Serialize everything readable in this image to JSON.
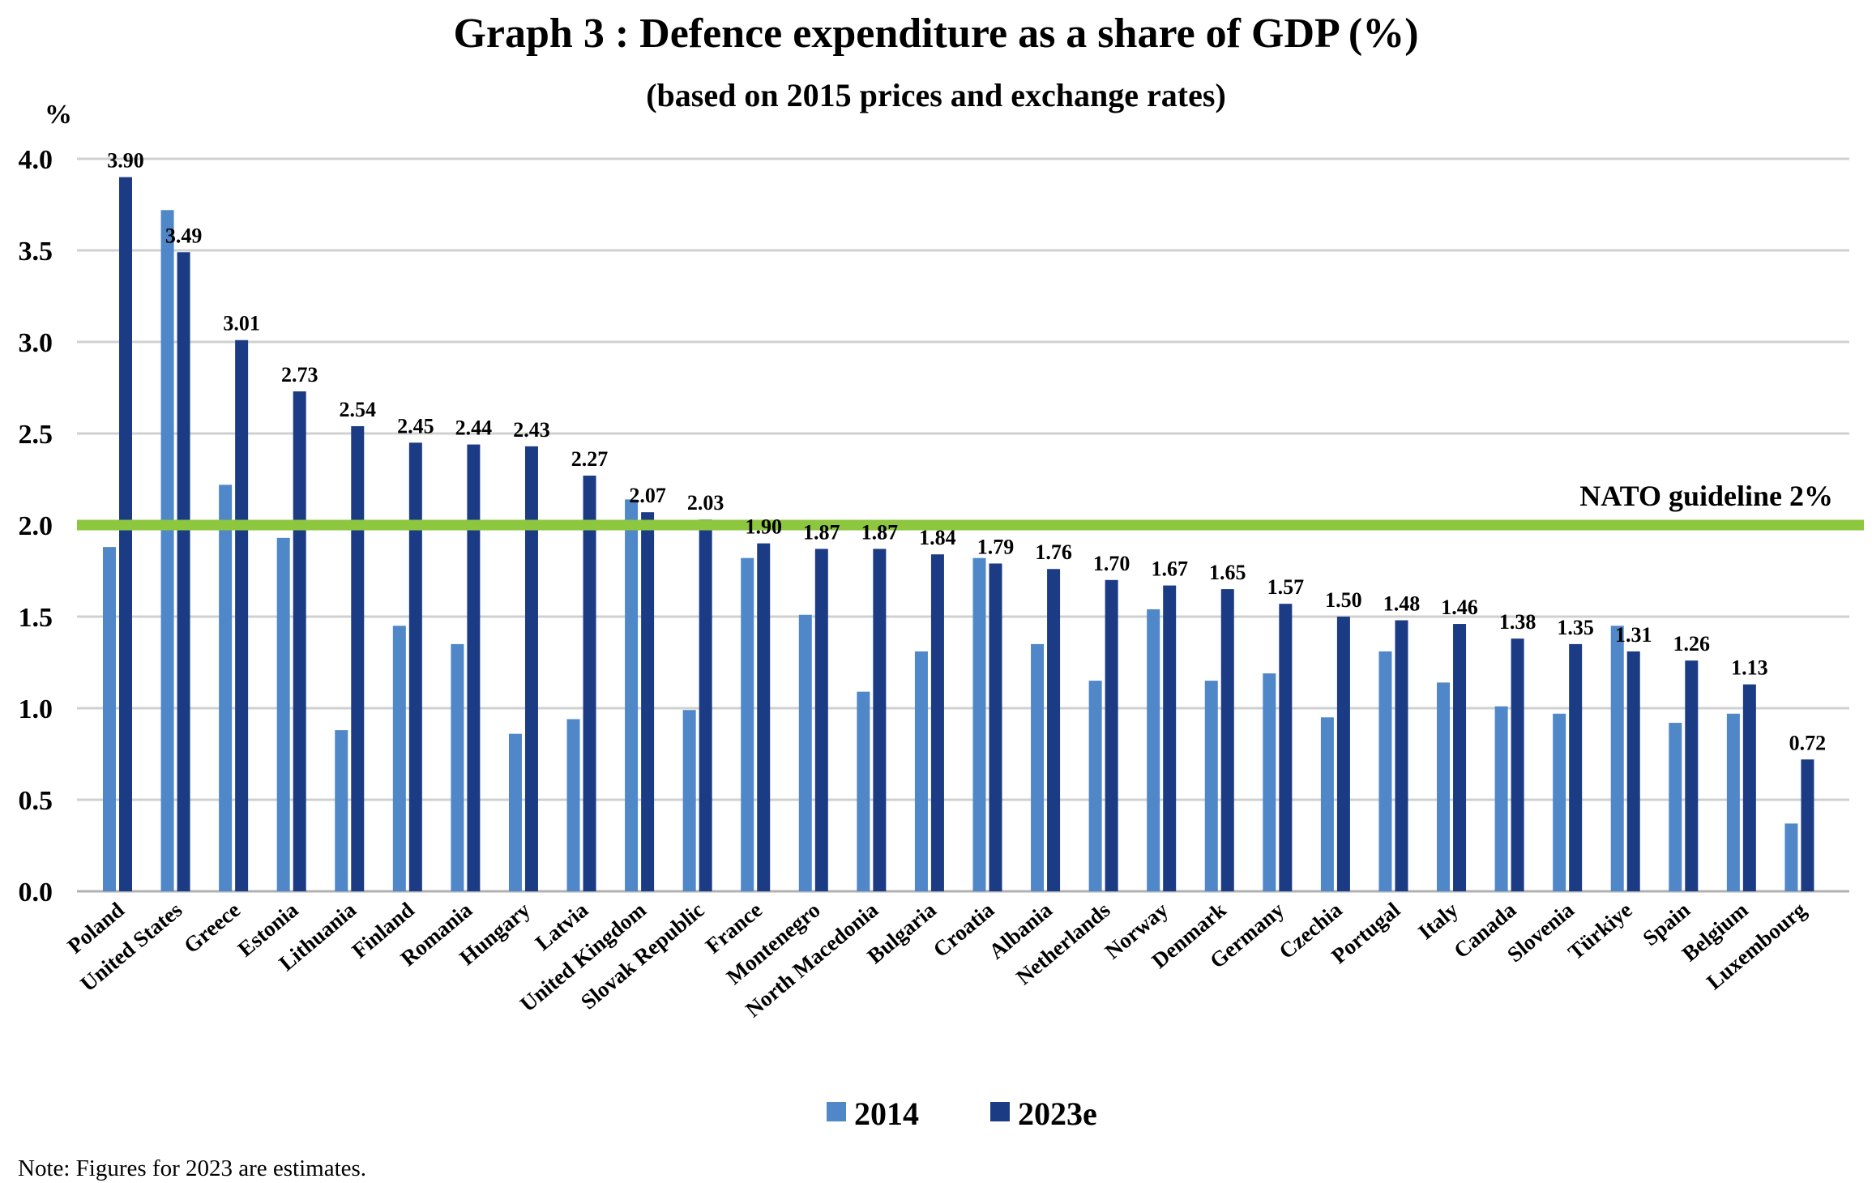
{
  "chart_data": {
    "type": "bar",
    "title": "Graph 3 : Defence expenditure as a share of GDP (%)",
    "subtitle": "(based on 2015 prices and exchange rates)",
    "ylabel": "%",
    "ylim": [
      0,
      4
    ],
    "yticks": [
      "0.0",
      "0.5",
      "1.0",
      "1.5",
      "2.0",
      "2.5",
      "3.0",
      "3.5",
      "4.0"
    ],
    "grid": true,
    "legend_position": "bottom",
    "categories": [
      "Poland",
      "United States",
      "Greece",
      "Estonia",
      "Lithuania",
      "Finland",
      "Romania",
      "Hungary",
      "Latvia",
      "United Kingdom",
      "Slovak Republic",
      "France",
      "Montenegro",
      "North Macedonia",
      "Bulgaria",
      "Croatia",
      "Albania",
      "Netherlands",
      "Norway",
      "Denmark",
      "Germany",
      "Czechia",
      "Portugal",
      "Italy",
      "Canada",
      "Slovenia",
      "Türkiye",
      "Spain",
      "Belgium",
      "Luxembourg"
    ],
    "series": [
      {
        "name": "2014",
        "color": "#4f87c9",
        "values": [
          1.88,
          3.72,
          2.22,
          1.93,
          0.88,
          1.45,
          1.35,
          0.86,
          0.94,
          2.14,
          0.99,
          1.82,
          1.51,
          1.09,
          1.31,
          1.82,
          1.35,
          1.15,
          1.54,
          1.15,
          1.19,
          0.95,
          1.31,
          1.14,
          1.01,
          0.97,
          1.45,
          0.92,
          0.97,
          0.37
        ]
      },
      {
        "name": "2023e",
        "color": "#1c3b85",
        "values": [
          3.9,
          3.49,
          3.01,
          2.73,
          2.54,
          2.45,
          2.44,
          2.43,
          2.27,
          2.07,
          2.03,
          1.9,
          1.87,
          1.87,
          1.84,
          1.79,
          1.76,
          1.7,
          1.67,
          1.65,
          1.57,
          1.5,
          1.48,
          1.46,
          1.38,
          1.35,
          1.31,
          1.26,
          1.13,
          0.72
        ],
        "labels": [
          "3.90",
          "3.49",
          "3.01",
          "2.73",
          "2.54",
          "2.45",
          "2.44",
          "2.43",
          "2.27",
          "2.07",
          "2.03",
          "1.90",
          "1.87",
          "1.87",
          "1.84",
          "1.79",
          "1.76",
          "1.70",
          "1.67",
          "1.65",
          "1.57",
          "1.50",
          "1.48",
          "1.46",
          "1.38",
          "1.35",
          "1.31",
          "1.26",
          "1.13",
          "0.72"
        ]
      }
    ],
    "reference_line": {
      "value": 2.0,
      "label": "NATO guideline 2%",
      "color": "#8dc63f"
    },
    "note": "Note: Figures for 2023 are estimates."
  }
}
